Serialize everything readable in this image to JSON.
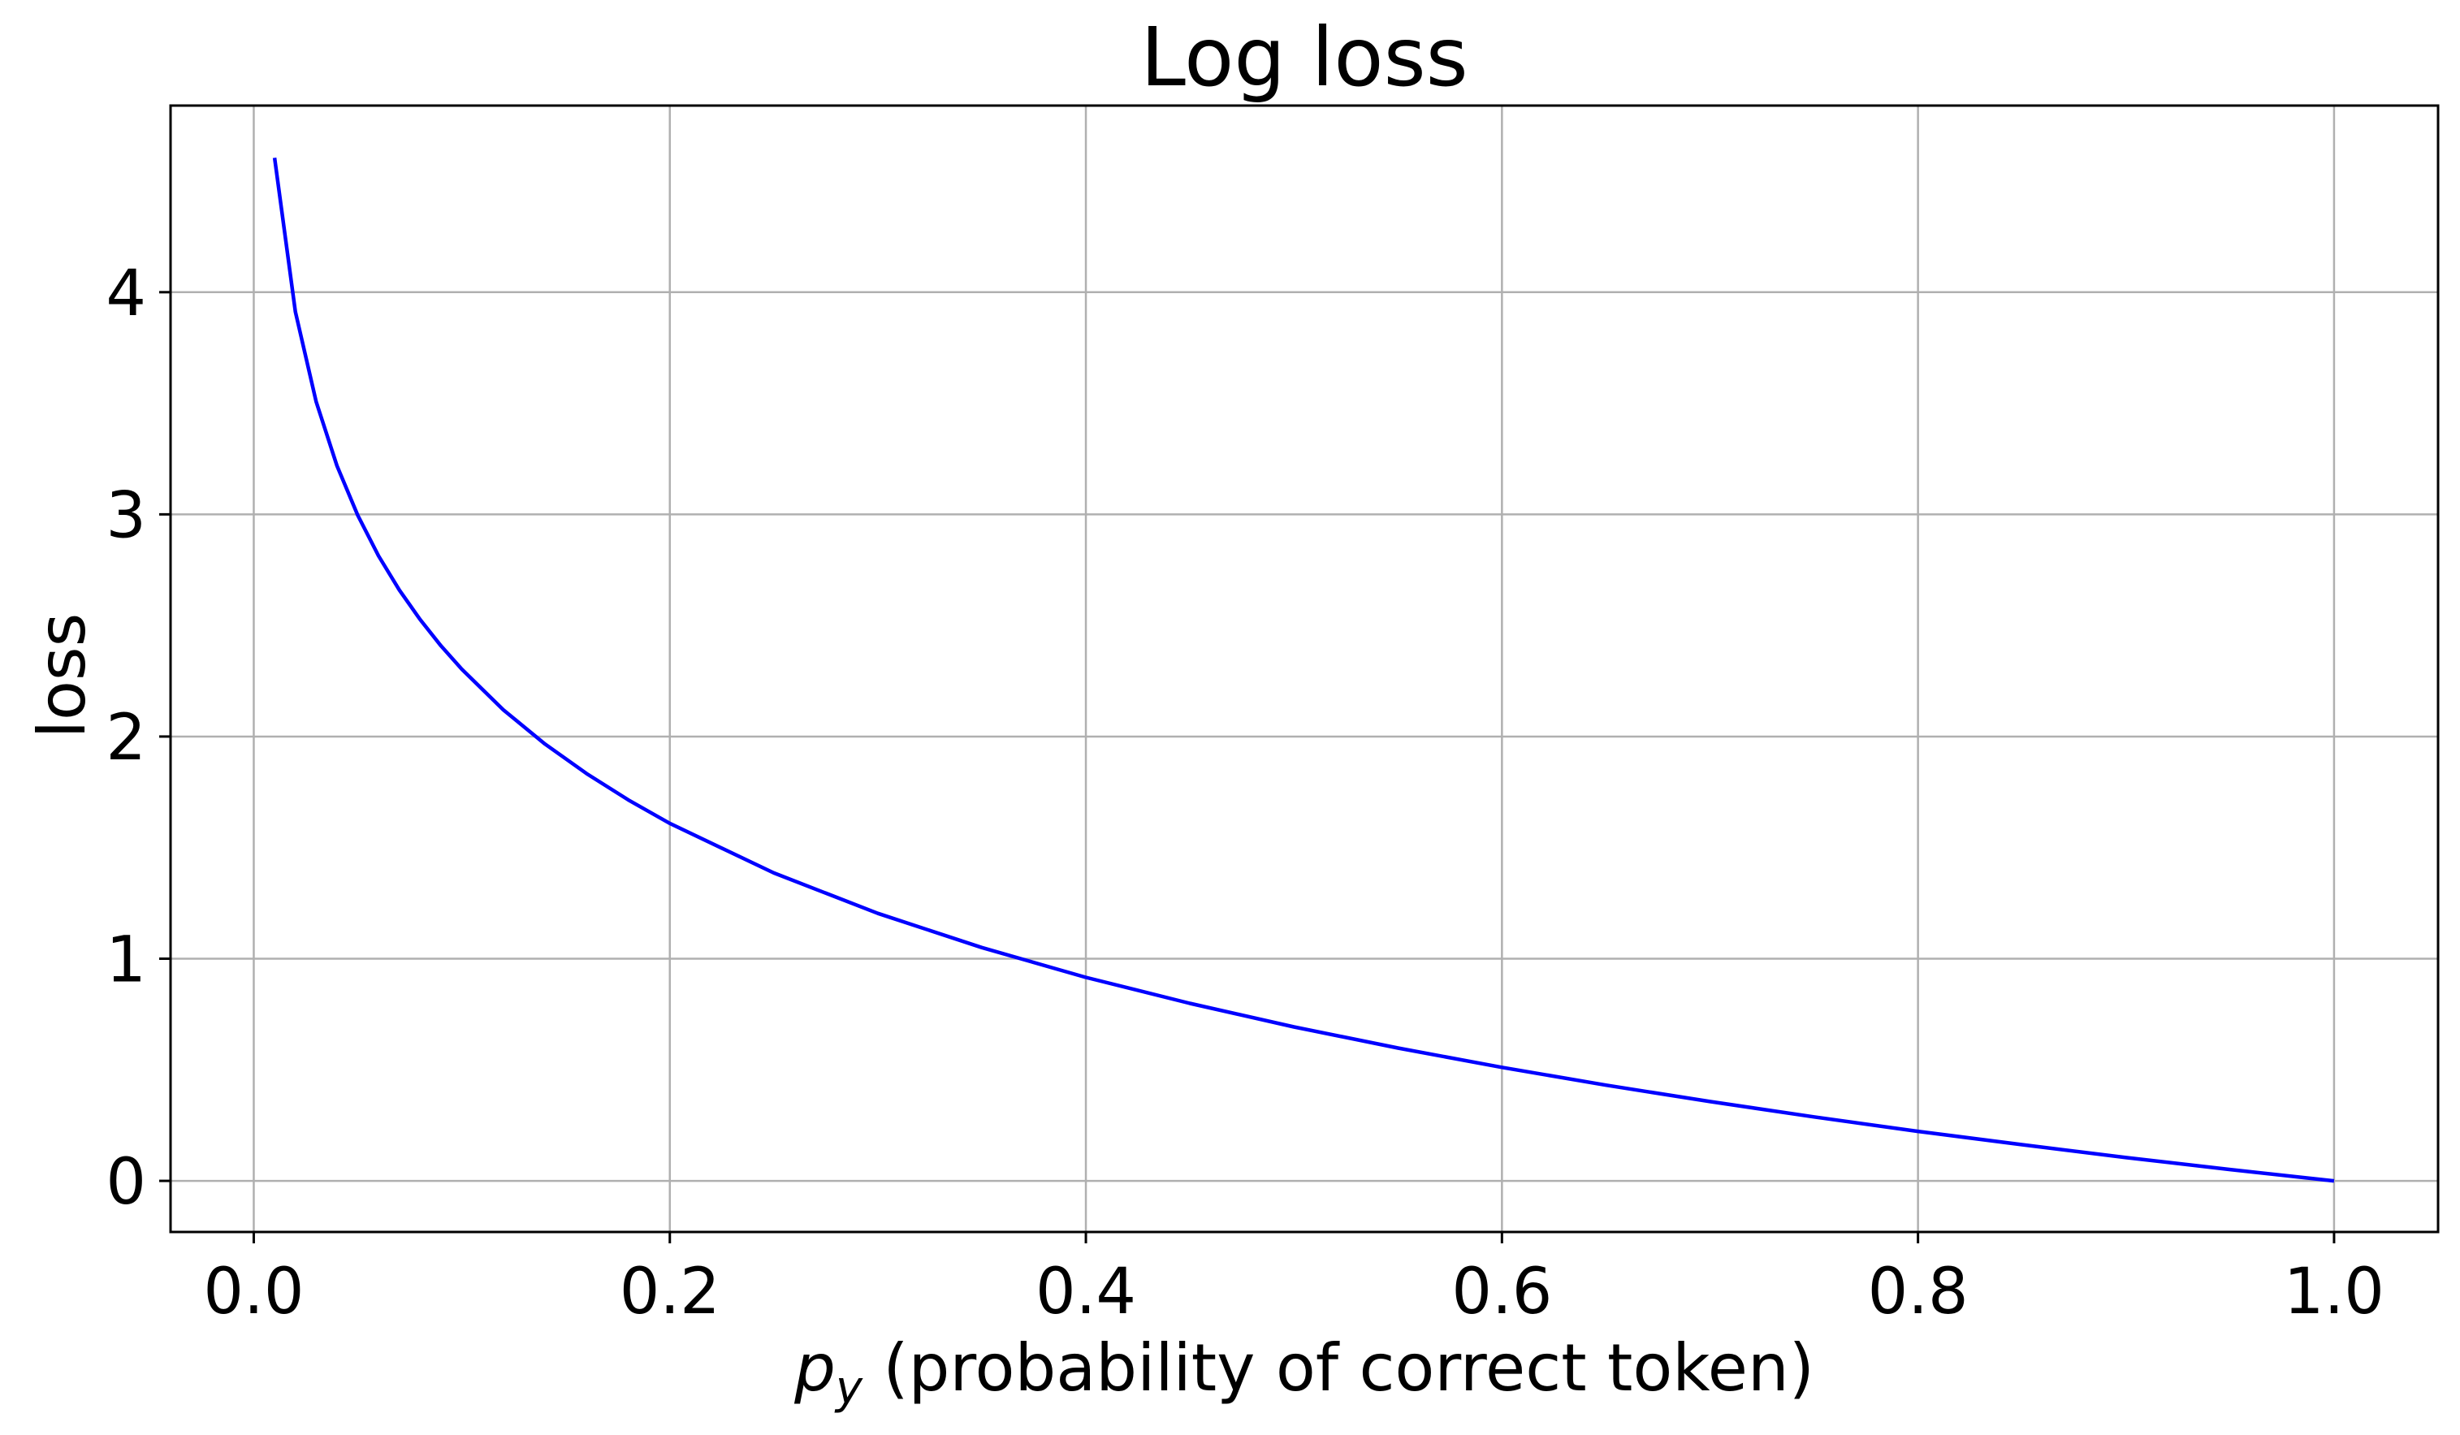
{
  "chart_data": {
    "type": "line",
    "title": "Log loss",
    "xlabel": {
      "symbol": "p",
      "subscript": "y",
      "rest": " (probability of correct token)"
    },
    "ylabel": "loss",
    "xlim": [
      -0.04,
      1.05
    ],
    "ylim": [
      -0.23,
      4.84
    ],
    "xticks": [
      0.0,
      0.2,
      0.4,
      0.6,
      0.8,
      1.0
    ],
    "xtick_labels": [
      "0.0",
      "0.2",
      "0.4",
      "0.6",
      "0.8",
      "1.0"
    ],
    "yticks": [
      0,
      1,
      2,
      3,
      4
    ],
    "ytick_labels": [
      "0",
      "1",
      "2",
      "3",
      "4"
    ],
    "grid": true,
    "series": [
      {
        "color": "#0000ff",
        "x": [
          0.01,
          0.02,
          0.03,
          0.04,
          0.05,
          0.06,
          0.07,
          0.08,
          0.09,
          0.1,
          0.12,
          0.14,
          0.16,
          0.18,
          0.2,
          0.25,
          0.3,
          0.35,
          0.4,
          0.45,
          0.5,
          0.55,
          0.6,
          0.65,
          0.7,
          0.75,
          0.8,
          0.85,
          0.9,
          0.95,
          1.0
        ],
        "y": [
          4.605,
          3.912,
          3.507,
          3.219,
          2.996,
          2.813,
          2.659,
          2.526,
          2.408,
          2.303,
          2.12,
          1.966,
          1.833,
          1.715,
          1.609,
          1.386,
          1.204,
          1.05,
          0.916,
          0.799,
          0.693,
          0.598,
          0.511,
          0.431,
          0.357,
          0.288,
          0.223,
          0.163,
          0.105,
          0.051,
          0.0
        ]
      }
    ]
  }
}
